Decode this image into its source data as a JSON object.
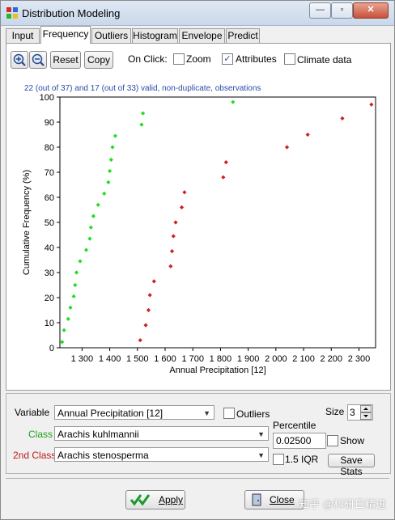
{
  "window": {
    "title": "Distribution Modeling",
    "controls": {
      "minimize": "—",
      "maximize": "▫",
      "close": "✕"
    }
  },
  "tabs": [
    {
      "label": "Input",
      "active": false
    },
    {
      "label": "Frequency",
      "active": true
    },
    {
      "label": "Outliers",
      "active": false
    },
    {
      "label": "Histogram",
      "active": false
    },
    {
      "label": "Envelope",
      "active": false
    },
    {
      "label": "Predict",
      "active": false
    }
  ],
  "toolbar": {
    "reset_label": "Reset",
    "copy_label": "Copy",
    "on_click_label": "On Click:",
    "zoom_label": "Zoom",
    "zoom_checked": false,
    "attributes_label": "Attributes",
    "attributes_checked": true,
    "climate_label": "Climate data",
    "climate_checked": false
  },
  "status_text": "22 (out of 37) and 17 (out of 33) valid, non-duplicate, observations",
  "chart_data": {
    "type": "scatter",
    "xlabel": "Annual Precipitation [12]",
    "ylabel": "Cumulative Frequency (%)",
    "xlim": [
      1220,
      2360
    ],
    "ylim": [
      0,
      100
    ],
    "x_ticks": [
      1300,
      1400,
      1500,
      1600,
      1700,
      1800,
      1900,
      2000,
      2100,
      2200,
      2300
    ],
    "x_tick_labels": [
      "1 300",
      "1 400",
      "1 500",
      "1 600",
      "1 700",
      "1 800",
      "1 900",
      "2 000",
      "2 100",
      "2 200",
      "2 300"
    ],
    "y_ticks": [
      0,
      10,
      20,
      30,
      40,
      50,
      60,
      70,
      80,
      90,
      100
    ],
    "series": [
      {
        "color": "#22dd22",
        "points": [
          [
            1228,
            2.3
          ],
          [
            1235,
            7
          ],
          [
            1250,
            11.5
          ],
          [
            1258,
            16
          ],
          [
            1270,
            20.5
          ],
          [
            1275,
            25
          ],
          [
            1280,
            30
          ],
          [
            1293,
            34.5
          ],
          [
            1315,
            39
          ],
          [
            1328,
            43.5
          ],
          [
            1332,
            48
          ],
          [
            1341,
            52.5
          ],
          [
            1358,
            57
          ],
          [
            1380,
            61.5
          ],
          [
            1395,
            66
          ],
          [
            1400,
            70.5
          ],
          [
            1405,
            75
          ],
          [
            1410,
            80
          ],
          [
            1420,
            84.5
          ],
          [
            1515,
            89
          ],
          [
            1520,
            93.5
          ],
          [
            1845,
            98
          ]
        ]
      },
      {
        "color": "#cc2222",
        "points": [
          [
            1510,
            3
          ],
          [
            1530,
            9
          ],
          [
            1540,
            15
          ],
          [
            1545,
            21
          ],
          [
            1560,
            26.5
          ],
          [
            1620,
            32.5
          ],
          [
            1625,
            38.5
          ],
          [
            1630,
            44.5
          ],
          [
            1638,
            50
          ],
          [
            1660,
            56
          ],
          [
            1670,
            62
          ],
          [
            1810,
            68
          ],
          [
            1820,
            74
          ],
          [
            2040,
            80
          ],
          [
            2115,
            85
          ],
          [
            2240,
            91.5
          ],
          [
            2345,
            97
          ]
        ]
      }
    ]
  },
  "controls": {
    "variable_label": "Variable",
    "variable_value": "Annual Precipitation [12]",
    "outliers_label": "Outliers",
    "outliers_checked": false,
    "size_label": "Size",
    "size_value": "3",
    "class_label": "Class",
    "class_value": "Arachis kuhlmannii",
    "class_color": "#1aa31a",
    "second_class_label": "2nd Class",
    "second_class_value": "Arachis stenosperma",
    "second_class_color": "#c01818",
    "percentile_label": "Percentile",
    "percentile_value": "0.02500",
    "show_label": "Show",
    "show_checked": false,
    "iqr_label": "1.5 IQR",
    "iqr_checked": false,
    "save_stats_label": "Save Stats"
  },
  "footer": {
    "apply_label": "Apply",
    "close_label": "Close"
  },
  "watermark": "知乎 @科研日精进"
}
